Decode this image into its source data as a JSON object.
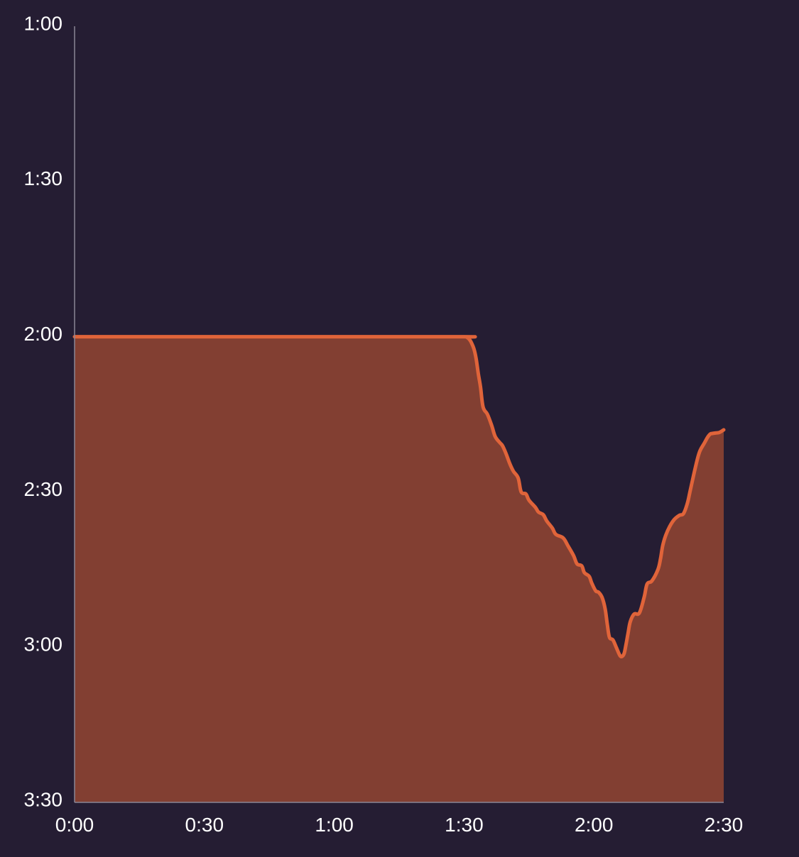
{
  "colors": {
    "background": "#251d33",
    "line": "#e0643a",
    "fill": "#823f32",
    "axis": "#8a8594",
    "label": "#ffffff"
  },
  "chart_data": {
    "type": "area",
    "title": "",
    "xlabel": "",
    "ylabel": "",
    "y_inverted": true,
    "grid": false,
    "xlim": [
      0,
      150
    ],
    "ylim": [
      60,
      210
    ],
    "x_ticks": [
      {
        "value": 0,
        "label": "0:00"
      },
      {
        "value": 30,
        "label": "0:30"
      },
      {
        "value": 60,
        "label": "1:00"
      },
      {
        "value": 90,
        "label": "1:30"
      },
      {
        "value": 120,
        "label": "2:00"
      },
      {
        "value": 150,
        "label": "2:30"
      }
    ],
    "y_ticks": [
      {
        "value": 60,
        "label": "1:00"
      },
      {
        "value": 90,
        "label": "1:30"
      },
      {
        "value": 120,
        "label": "2:00"
      },
      {
        "value": 150,
        "label": "2:30"
      },
      {
        "value": 180,
        "label": "3:00"
      },
      {
        "value": 210,
        "label": "3:30"
      }
    ],
    "series": [
      {
        "x": [
          0,
          30,
          60,
          90,
          90.6,
          91.1,
          91.6,
          92.3,
          92.8,
          93.3,
          93.8,
          94.4,
          95.4,
          96.4,
          97.2,
          98.3,
          98.9,
          99.7,
          100.6,
          101.4,
          102.5,
          103.2,
          104.3,
          105.0,
          106.5,
          107.2,
          108.3,
          109.1,
          110.4,
          111.2,
          112.9,
          114.0,
          115.3,
          116.1,
          117.2,
          117.8,
          118.9,
          119.5,
          120.4,
          121.1,
          121.9,
          122.6,
          123.1,
          123.6,
          124.4,
          125.2,
          126.0,
          126.5,
          127.0,
          127.4,
          127.9,
          128.4,
          129.3,
          130.5,
          131.6,
          132.3,
          133.4,
          134.8,
          135.4,
          135.9,
          136.6,
          137.5,
          138.6,
          139.8,
          140.7,
          141.6,
          142.3,
          143.5,
          144.4,
          145.5,
          146.3,
          146.9,
          147.4,
          148.2,
          149.0,
          150.0
        ],
        "y": [
          120.0,
          120.0,
          120.0,
          120.0,
          120.1,
          120.4,
          121.0,
          122.4,
          124.3,
          127.2,
          129.7,
          133.6,
          135.0,
          137.2,
          139.3,
          140.5,
          141.1,
          142.6,
          144.6,
          146.0,
          147.3,
          150.0,
          150.4,
          151.6,
          153.0,
          153.9,
          154.4,
          155.6,
          157.0,
          158.2,
          158.9,
          160.4,
          162.3,
          163.9,
          164.3,
          165.6,
          166.3,
          167.6,
          169.1,
          169.4,
          170.4,
          172.6,
          175.6,
          178.1,
          178.6,
          180.1,
          181.6,
          181.8,
          181.2,
          179.6,
          177.3,
          175.1,
          173.6,
          173.4,
          170.4,
          167.8,
          167.2,
          165.0,
          162.9,
          160.4,
          158.4,
          156.7,
          155.3,
          154.5,
          154.2,
          152.2,
          149.6,
          145.1,
          142.3,
          140.6,
          139.4,
          138.8,
          138.7,
          138.6,
          138.5,
          138.0
        ]
      }
    ]
  }
}
